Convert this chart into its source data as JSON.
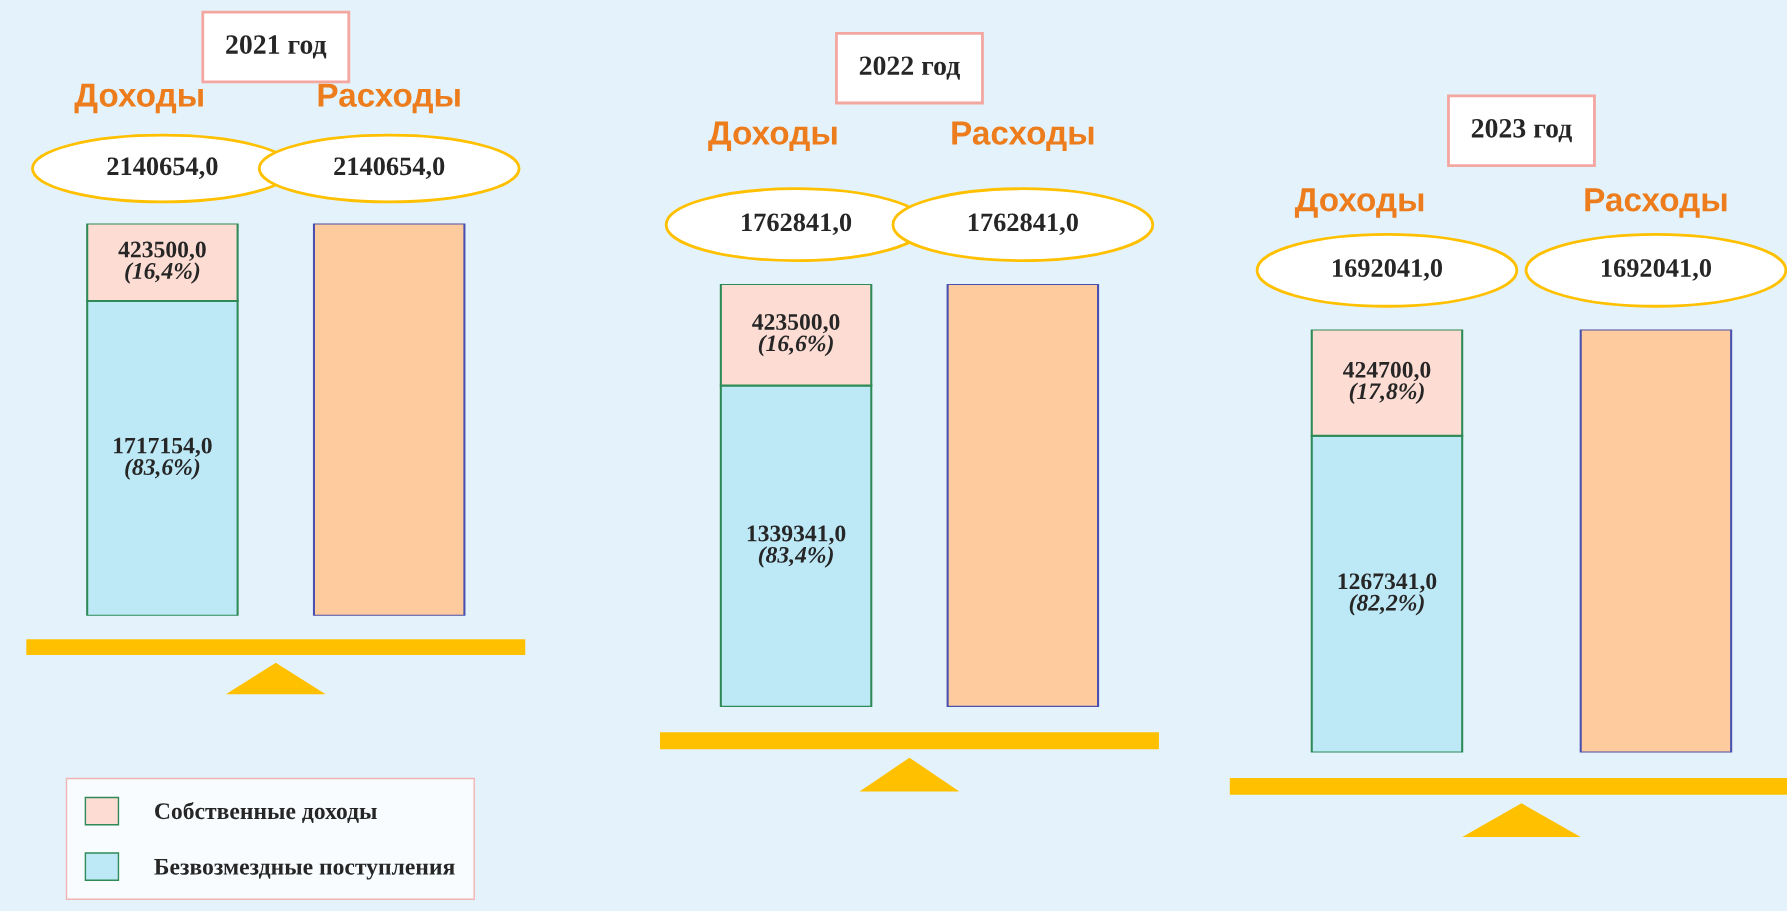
{
  "chart_data": [
    {
      "type": "bar",
      "title": "2021 год",
      "categories": [
        "Доходы",
        "Расходы"
      ],
      "stacked": true,
      "legend": "bottom left",
      "series": [
        {
          "name": "Безвозмездные поступления",
          "color": "#bde8f6",
          "values": [
            1717154,
            null
          ],
          "value_labels": [
            "1717154,0\n(83,6%)",
            null
          ]
        },
        {
          "name": "Собственные доходы",
          "color": "#fcdcd3",
          "values": [
            423500,
            null
          ],
          "value_labels": [
            "423500,0\n(16,4%)",
            null
          ]
        },
        {
          "color": "#fecb9e",
          "values": [
            null,
            2140654
          ],
          "value_labels": [
            null,
            null
          ]
        }
      ],
      "totals": [
        "2140654,0",
        "2140654,0"
      ]
    },
    {
      "type": "bar",
      "title": "2022 год",
      "categories": [
        "Доходы",
        "Расходы"
      ],
      "stacked": true,
      "series": [
        {
          "color": "#bde8f6",
          "values": [
            1339341,
            null
          ],
          "value_labels": [
            "1339341,0\n(83,4%)",
            null
          ]
        },
        {
          "color": "#fcdcd3",
          "values": [
            423500,
            null
          ],
          "value_labels": [
            "423500,0\n(16,6%)",
            null
          ]
        },
        {
          "color": "#fecb9e",
          "values": [
            null,
            1762841
          ],
          "value_labels": [
            null,
            null
          ]
        }
      ],
      "totals": [
        "1762841,0",
        "1762841,0"
      ]
    },
    {
      "type": "bar",
      "title": "2023 год",
      "categories": [
        "Доходы",
        "Расходы"
      ],
      "stacked": true,
      "series": [
        {
          "color": "#bde8f6",
          "values": [
            1267341,
            null
          ],
          "value_labels": [
            "1267341,0\n(82,2%)",
            null
          ]
        },
        {
          "color": "#fcdcd3",
          "values": [
            424700,
            null
          ],
          "value_labels": [
            "424700,0\n(17,8%)",
            null
          ]
        },
        {
          "color": "#fecb9e",
          "values": [
            null,
            1692041
          ],
          "value_labels": [
            null,
            null
          ]
        }
      ],
      "totals": [
        "1692041,0",
        "1692041,0"
      ]
    }
  ]
}
